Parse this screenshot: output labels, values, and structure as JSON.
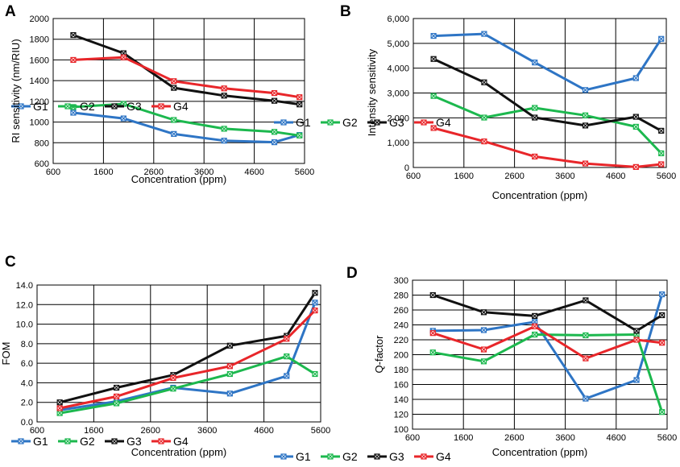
{
  "chart_data": [
    {
      "panel": "A",
      "type": "line",
      "xlabel": "Concentration (ppm)",
      "ylabel": "RI sensitivity (nm/RIU)",
      "xlim": [
        600,
        5600
      ],
      "ylim": [
        600,
        2000
      ],
      "xticks": [
        "600",
        "1600",
        "2600",
        "3600",
        "4600",
        "5600"
      ],
      "yticks": [
        "600",
        "800",
        "1000",
        "1200",
        "1400",
        "1600",
        "1800",
        "2000"
      ],
      "ytick_values": [
        600,
        800,
        1000,
        1200,
        1400,
        1600,
        1800,
        2000
      ],
      "x": [
        1000,
        2000,
        3000,
        4000,
        5000,
        5500
      ],
      "legend_position": "top",
      "series": [
        {
          "name": "G1",
          "color": "#2e75c5",
          "values": [
            1090,
            1035,
            885,
            820,
            805,
            875
          ]
        },
        {
          "name": "G2",
          "color": "#1cb84e",
          "values": [
            1145,
            1175,
            1020,
            935,
            905,
            870
          ]
        },
        {
          "name": "G3",
          "color": "#111111",
          "values": [
            1840,
            1665,
            1330,
            1255,
            1205,
            1170
          ]
        },
        {
          "name": "G4",
          "color": "#e8262a",
          "values": [
            1600,
            1625,
            1395,
            1325,
            1280,
            1240
          ]
        }
      ]
    },
    {
      "panel": "B",
      "type": "line",
      "xlabel": "Concentration (ppm)",
      "ylabel": "Intensity sensitivity",
      "xlim": [
        600,
        5600
      ],
      "ylim": [
        0,
        6000
      ],
      "xticks": [
        "600",
        "1600",
        "2600",
        "3600",
        "4600",
        "5600"
      ],
      "yticks": [
        "0",
        "1,000",
        "2,000",
        "3,000",
        "4,000",
        "5,000",
        "6,000"
      ],
      "ytick_values": [
        0,
        1000,
        2000,
        3000,
        4000,
        5000,
        6000
      ],
      "x": [
        1000,
        2000,
        3000,
        4000,
        5000,
        5500
      ],
      "legend_position": "top",
      "series": [
        {
          "name": "G1",
          "color": "#2e75c5",
          "values": [
            5300,
            5380,
            4230,
            3120,
            3600,
            5180
          ]
        },
        {
          "name": "G2",
          "color": "#1cb84e",
          "values": [
            2880,
            2010,
            2400,
            2100,
            1640,
            570
          ]
        },
        {
          "name": "G3",
          "color": "#111111",
          "values": [
            4370,
            3430,
            2010,
            1690,
            2040,
            1480
          ]
        },
        {
          "name": "G4",
          "color": "#e8262a",
          "values": [
            1590,
            1050,
            440,
            160,
            20,
            130
          ]
        }
      ]
    },
    {
      "panel": "C",
      "type": "line",
      "xlabel": "Concentration (ppm)",
      "ylabel": "FOM",
      "xlim": [
        600,
        5600
      ],
      "ylim": [
        0,
        14
      ],
      "xticks": [
        "600",
        "1600",
        "2600",
        "3600",
        "4600",
        "5600"
      ],
      "yticks": [
        "0.0",
        "2.0",
        "4.0",
        "6.0",
        "8.0",
        "10.0",
        "12.0",
        "14.0"
      ],
      "ytick_values": [
        0,
        2,
        4,
        6,
        8,
        10,
        12,
        14
      ],
      "x": [
        1000,
        2000,
        3000,
        4000,
        5000,
        5500
      ],
      "legend_position": "top",
      "series": [
        {
          "name": "G1",
          "color": "#2e75c5",
          "values": [
            1.2,
            2.1,
            3.5,
            2.9,
            4.7,
            12.2
          ]
        },
        {
          "name": "G2",
          "color": "#1cb84e",
          "values": [
            0.9,
            1.9,
            3.4,
            4.9,
            6.7,
            4.9
          ]
        },
        {
          "name": "G3",
          "color": "#111111",
          "values": [
            2.0,
            3.5,
            4.8,
            7.8,
            8.8,
            13.2
          ]
        },
        {
          "name": "G4",
          "color": "#e8262a",
          "values": [
            1.4,
            2.6,
            4.5,
            5.7,
            8.5,
            11.4
          ]
        }
      ]
    },
    {
      "panel": "D",
      "type": "line",
      "xlabel": "Concentration (ppm)",
      "ylabel": "Q-factor",
      "xlim": [
        600,
        5600
      ],
      "ylim": [
        100,
        300
      ],
      "xticks": [
        "600",
        "1600",
        "2600",
        "3600",
        "4600",
        "5600"
      ],
      "yticks": [
        "100",
        "120",
        "140",
        "160",
        "180",
        "200",
        "220",
        "240",
        "260",
        "280",
        "300"
      ],
      "ytick_values": [
        100,
        120,
        140,
        160,
        180,
        200,
        220,
        240,
        260,
        280,
        300
      ],
      "x": [
        1000,
        2000,
        3000,
        4000,
        5000,
        5500
      ],
      "legend_position": "top",
      "series": [
        {
          "name": "G1",
          "color": "#2e75c5",
          "values": [
            232,
            233,
            244,
            141,
            166,
            281
          ]
        },
        {
          "name": "G2",
          "color": "#1cb84e",
          "values": [
            203,
            191,
            227,
            226,
            227,
            123
          ]
        },
        {
          "name": "G3",
          "color": "#111111",
          "values": [
            280,
            257,
            252,
            273,
            232,
            253
          ]
        },
        {
          "name": "G4",
          "color": "#e8262a",
          "values": [
            229,
            207,
            238,
            195,
            220,
            216
          ]
        }
      ]
    }
  ]
}
